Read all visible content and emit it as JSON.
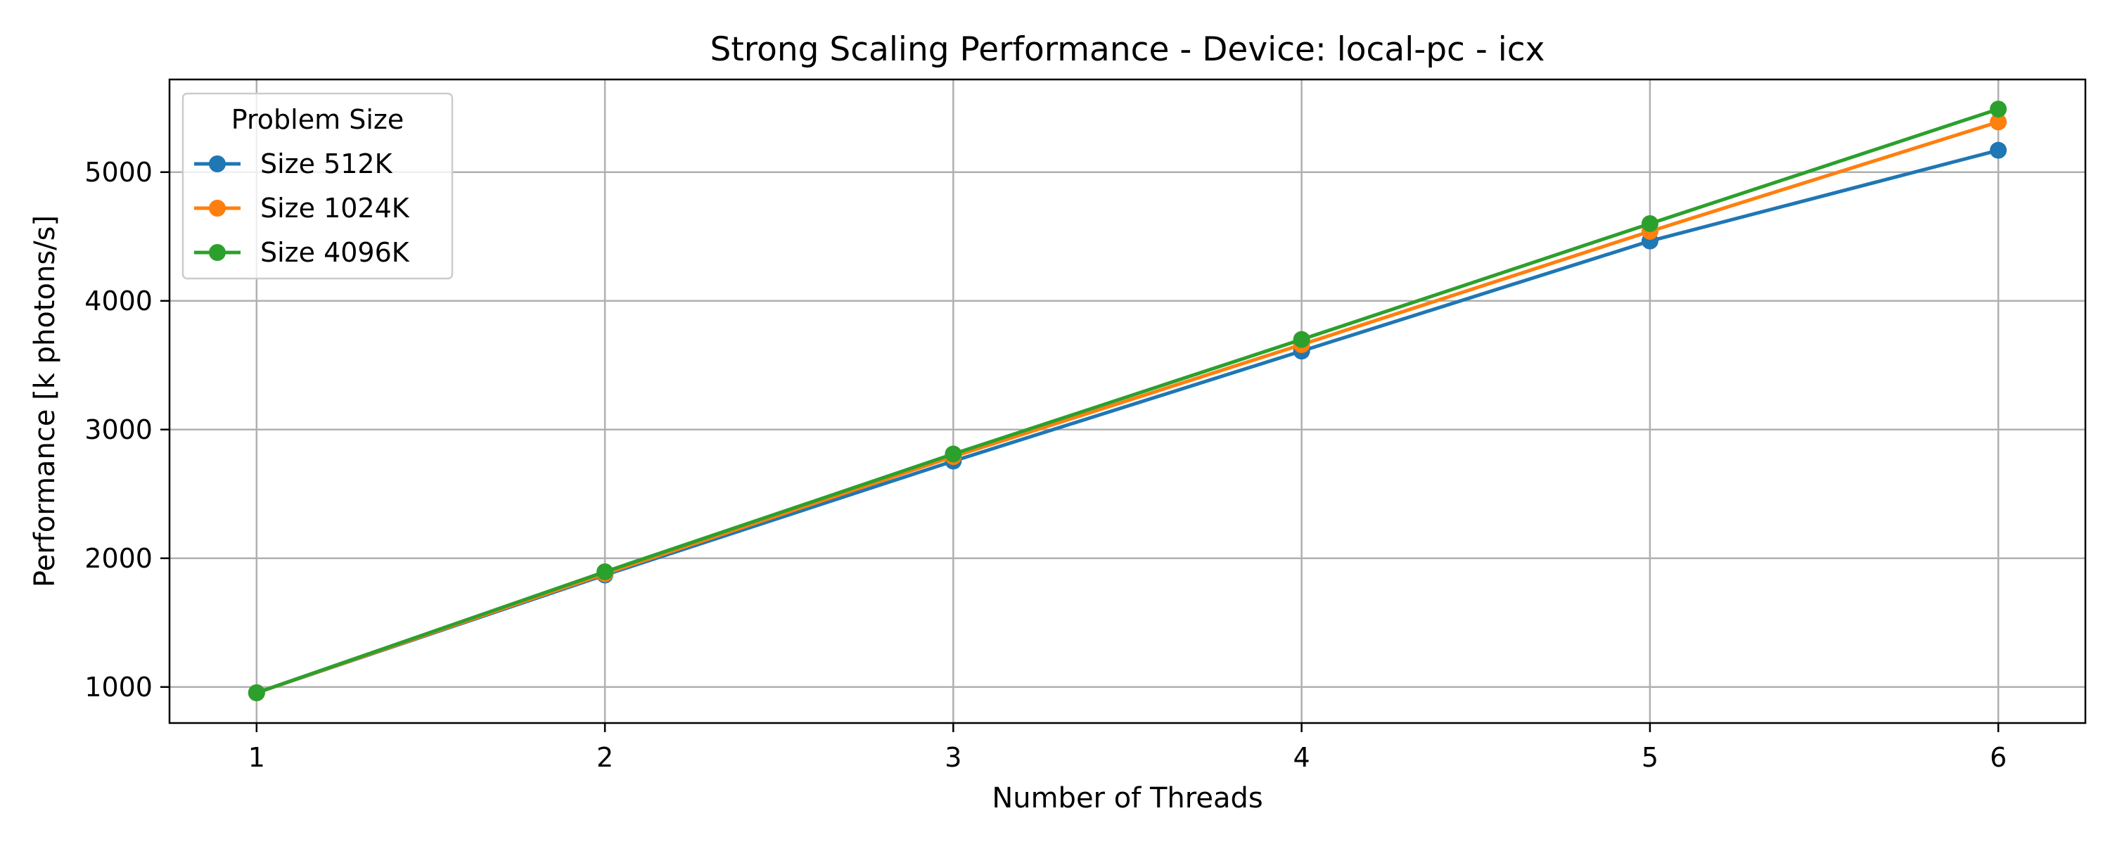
{
  "chart_data": {
    "type": "line",
    "title": "Strong Scaling Performance - Device: local-pc - icx",
    "xlabel": "Number of Threads",
    "ylabel": "Performance [k photons/s]",
    "x": [
      1,
      2,
      3,
      4,
      5,
      6
    ],
    "xlim": [
      0.75,
      6.25
    ],
    "ylim": [
      720,
      5720
    ],
    "xticks": [
      "1",
      "2",
      "3",
      "4",
      "5",
      "6"
    ],
    "yticks": [
      1000,
      2000,
      3000,
      4000,
      5000
    ],
    "grid": true,
    "legend": {
      "title": "Problem Size",
      "placement": "top-left"
    },
    "series": [
      {
        "name": "Size 512K",
        "color": "#1f77b4",
        "values": [
          955,
          1870,
          2755,
          3610,
          4465,
          5170
        ]
      },
      {
        "name": "Size 1024K",
        "color": "#ff7f0e",
        "values": [
          955,
          1880,
          2790,
          3660,
          4540,
          5390
        ]
      },
      {
        "name": "Size 4096K",
        "color": "#2ca02c",
        "values": [
          955,
          1895,
          2810,
          3700,
          4600,
          5490
        ]
      }
    ]
  }
}
